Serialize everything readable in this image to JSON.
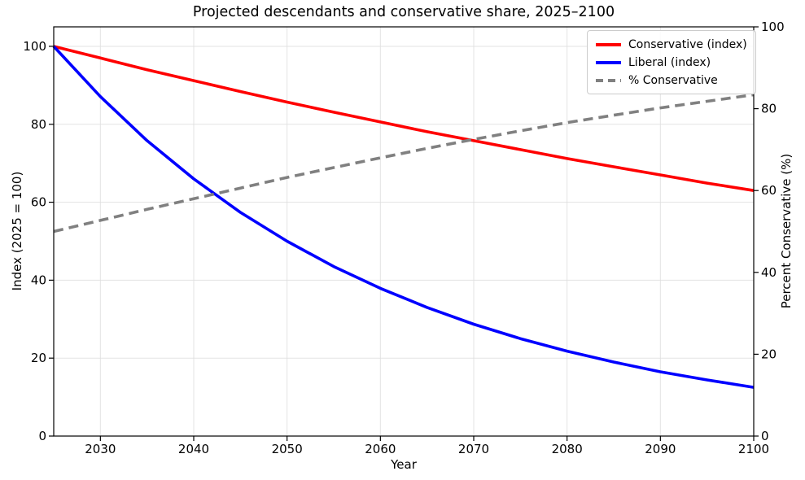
{
  "colors": {
    "background": "#ffffff",
    "grid": "#dddddd",
    "spine": "#000000",
    "text": "#000000",
    "legend_border": "#cccccc",
    "conservative": "#ff0000",
    "liberal": "#0000ff",
    "pct_conservative": "#808080"
  },
  "chart_data": {
    "type": "line",
    "title": "Projected descendants and conservative share, 2025–2100",
    "xlabel": "Year",
    "ylabel_left": "Index (2025 = 100)",
    "ylabel_right": "Percent Conservative (%)",
    "x_range": [
      2025,
      2100
    ],
    "y_left_range": [
      0,
      105
    ],
    "y_right_range": [
      0,
      100
    ],
    "x_ticks": [
      2030,
      2040,
      2050,
      2060,
      2070,
      2080,
      2090,
      2100
    ],
    "y_left_ticks": [
      0,
      20,
      40,
      60,
      80,
      100
    ],
    "y_right_ticks": [
      0,
      20,
      40,
      60,
      80,
      100
    ],
    "grid": true,
    "legend_position": "upper right",
    "x": [
      2025,
      2030,
      2035,
      2040,
      2045,
      2050,
      2055,
      2060,
      2065,
      2070,
      2075,
      2080,
      2085,
      2090,
      2095,
      2100
    ],
    "series": [
      {
        "name": "Conservative (index)",
        "color": "#ff0000",
        "style": "solid",
        "axis": "left",
        "values": [
          100.0,
          97.0,
          94.0,
          91.2,
          88.4,
          85.7,
          83.1,
          80.6,
          78.1,
          75.8,
          73.5,
          71.2,
          69.1,
          67.0,
          64.9,
          63.0
        ]
      },
      {
        "name": "Liberal (index)",
        "color": "#0000ff",
        "style": "solid",
        "axis": "left",
        "values": [
          100.0,
          87.1,
          75.8,
          66.0,
          57.4,
          50.0,
          43.5,
          37.9,
          33.0,
          28.7,
          25.0,
          21.8,
          19.0,
          16.5,
          14.4,
          12.5
        ]
      },
      {
        "name": "% Conservative",
        "color": "#808080",
        "style": "dashed",
        "axis": "right",
        "values": [
          50.0,
          52.7,
          55.4,
          58.0,
          60.6,
          63.2,
          65.6,
          68.0,
          70.3,
          72.5,
          74.6,
          76.6,
          78.4,
          80.2,
          81.8,
          83.4
        ]
      }
    ]
  }
}
